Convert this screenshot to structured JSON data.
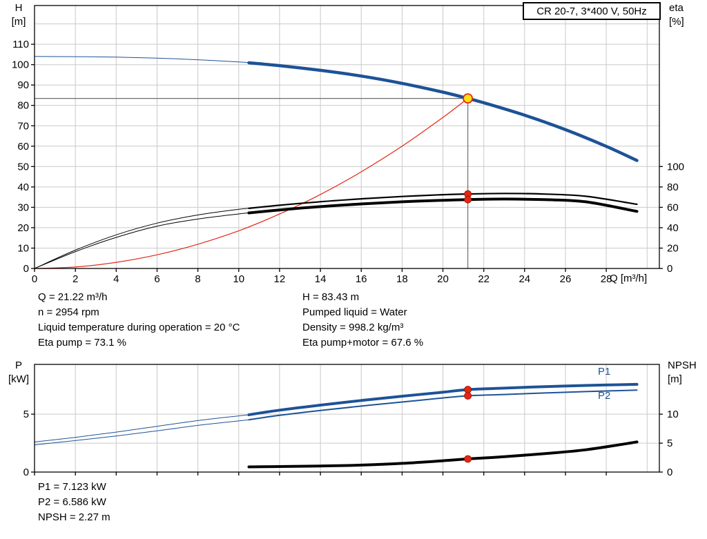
{
  "colors": {
    "blue": "#1d5296",
    "black": "#000000",
    "red": "#e42613",
    "marker_yellow": "#ffe014",
    "grid": "#c9c9c9",
    "crosshair": "#6e6e6e"
  },
  "chart_data": [
    {
      "name": "qh-eta-chart",
      "type": "line",
      "title": "CR 20-7, 3*400 V, 50Hz",
      "x_axis": {
        "label": "Q [m³/h]",
        "max": 30.6,
        "ticks": [
          0,
          2,
          4,
          6,
          8,
          10,
          12,
          14,
          16,
          18,
          20,
          22,
          24,
          26,
          28
        ],
        "grid": [
          2,
          4,
          6,
          8,
          10,
          12,
          14,
          16,
          18,
          20,
          22,
          24,
          26,
          28,
          30
        ],
        "show_labels": true
      },
      "y_left": {
        "label": [
          "H",
          "[m]"
        ],
        "max": 129,
        "ticks": [
          0,
          10,
          20,
          30,
          40,
          50,
          60,
          70,
          80,
          90,
          100,
          110
        ],
        "grid": [
          10,
          20,
          30,
          40,
          50,
          60,
          70,
          80,
          90,
          100,
          110,
          120
        ]
      },
      "y_right": {
        "label": [
          "eta",
          "[%]"
        ],
        "scale": 0.5,
        "ticks": [
          0,
          20,
          40,
          60,
          80,
          100
        ]
      },
      "crosshair": {
        "q": 21.22,
        "h": 83.43
      },
      "duty_point": {
        "q_m3h": 21.22,
        "h_m": 83.43,
        "eta_pump_pct": 73.1,
        "eta_pump_motor_pct": 67.6
      },
      "series": [
        {
          "name": "system-curve",
          "axis": "left",
          "color": "red",
          "width": 1.2,
          "points": [
            [
              0,
              0
            ],
            [
              2,
              0.7
            ],
            [
              4,
              3.0
            ],
            [
              6,
              6.7
            ],
            [
              8,
              11.9
            ],
            [
              10,
              18.5
            ],
            [
              12,
              26.7
            ],
            [
              14,
              36.3
            ],
            [
              16,
              47.4
            ],
            [
              18,
              60.0
            ],
            [
              20,
              74.1
            ],
            [
              21.22,
              83.43
            ]
          ]
        },
        {
          "name": "eta-pump-lowflow",
          "axis": "right",
          "color": "black",
          "width": 1,
          "points": [
            [
              0,
              0
            ],
            [
              2,
              18
            ],
            [
              4,
              33
            ],
            [
              6,
              44.5
            ],
            [
              8,
              52.5
            ],
            [
              10,
              58
            ],
            [
              10.5,
              59
            ]
          ]
        },
        {
          "name": "eta-pump",
          "axis": "right",
          "color": "black",
          "width": 2.2,
          "points": [
            [
              10.5,
              59
            ],
            [
              12,
              62
            ],
            [
              14,
              65.5
            ],
            [
              16,
              68.3
            ],
            [
              18,
              70.6
            ],
            [
              20,
              72.4
            ],
            [
              21.22,
              73.1
            ],
            [
              23,
              73.6
            ],
            [
              25,
              73.0
            ],
            [
              27,
              70.8
            ],
            [
              29.5,
              63
            ]
          ]
        },
        {
          "name": "eta-pump-motor-lowflow",
          "axis": "right",
          "color": "black",
          "width": 1,
          "points": [
            [
              0,
              0
            ],
            [
              2,
              16.5
            ],
            [
              4,
              30.5
            ],
            [
              6,
              41.5
            ],
            [
              8,
              48.5
            ],
            [
              10,
              53.5
            ],
            [
              10.5,
              54.5
            ]
          ]
        },
        {
          "name": "eta-pump-motor",
          "axis": "right",
          "color": "black",
          "width": 4,
          "points": [
            [
              10.5,
              54.5
            ],
            [
              12,
              57.4
            ],
            [
              14,
              60.7
            ],
            [
              16,
              63.3
            ],
            [
              18,
              65.4
            ],
            [
              20,
              66.9
            ],
            [
              21.22,
              67.6
            ],
            [
              23,
              68.1
            ],
            [
              25,
              67.5
            ],
            [
              27,
              65.4
            ],
            [
              29.5,
              56
            ]
          ]
        },
        {
          "name": "qh-lowflow",
          "axis": "left",
          "color": "blue",
          "width": 1,
          "points": [
            [
              0,
              104
            ],
            [
              2,
              103.9
            ],
            [
              4,
              103.7
            ],
            [
              6,
              103.2
            ],
            [
              8,
              102.4
            ],
            [
              10,
              101.3
            ],
            [
              10.5,
              100.9
            ]
          ]
        },
        {
          "name": "qh",
          "axis": "left",
          "color": "blue",
          "width": 4.5,
          "points": [
            [
              10.5,
              100.9
            ],
            [
              12,
              99.5
            ],
            [
              14,
              97.2
            ],
            [
              16,
              94.4
            ],
            [
              18,
              90.8
            ],
            [
              20,
              86.5
            ],
            [
              21.22,
              83.43
            ],
            [
              22,
              81.3
            ],
            [
              24,
              75.2
            ],
            [
              26,
              68.1
            ],
            [
              28,
              59.9
            ],
            [
              29.5,
              53.0
            ]
          ]
        }
      ],
      "markers": [
        {
          "q": 21.22,
          "v": 73.1,
          "axis": "right",
          "style": "red"
        },
        {
          "q": 21.22,
          "v": 67.6,
          "axis": "right",
          "style": "red"
        },
        {
          "q": 21.22,
          "v": 83.43,
          "axis": "left",
          "style": "duty"
        }
      ]
    },
    {
      "name": "power-npsh-chart",
      "type": "line",
      "x_axis": {
        "label": "",
        "max": 30.6,
        "ticks": [
          0,
          2,
          4,
          6,
          8,
          10,
          12,
          14,
          16,
          18,
          20,
          22,
          24,
          26,
          28
        ],
        "grid": [
          2,
          4,
          6,
          8,
          10,
          12,
          14,
          16,
          18,
          20,
          22,
          24,
          26,
          28,
          30
        ],
        "show_labels": false
      },
      "y_left": {
        "label": [
          "P",
          "[kW]"
        ],
        "max": 9.3,
        "ticks": [
          0,
          5
        ],
        "grid": [
          2.5,
          5
        ]
      },
      "y_right": {
        "label": [
          "NPSH",
          "[m]"
        ],
        "scale": 0.5,
        "ticks": [
          0,
          5,
          10
        ]
      },
      "curve_labels": {
        "p1": "P1",
        "p2": "P2"
      },
      "duty_point": {
        "q_m3h": 21.22,
        "p1_kw": 7.123,
        "p2_kw": 6.586,
        "npsh_m": 2.27
      },
      "series": [
        {
          "name": "p1-lowflow",
          "axis": "left",
          "color": "blue",
          "width": 1,
          "points": [
            [
              0,
              2.6
            ],
            [
              2,
              3.0
            ],
            [
              4,
              3.45
            ],
            [
              6,
              3.95
            ],
            [
              8,
              4.45
            ],
            [
              10,
              4.85
            ],
            [
              10.5,
              4.95
            ]
          ]
        },
        {
          "name": "p1",
          "axis": "left",
          "color": "blue",
          "width": 4,
          "points": [
            [
              10.5,
              4.95
            ],
            [
              12,
              5.35
            ],
            [
              14,
              5.78
            ],
            [
              16,
              6.18
            ],
            [
              18,
              6.55
            ],
            [
              20,
              6.9
            ],
            [
              21.22,
              7.123
            ],
            [
              23,
              7.25
            ],
            [
              25,
              7.38
            ],
            [
              27,
              7.48
            ],
            [
              29.5,
              7.58
            ]
          ]
        },
        {
          "name": "p2-lowflow",
          "axis": "left",
          "color": "blue",
          "width": 1,
          "points": [
            [
              0,
              2.35
            ],
            [
              2,
              2.72
            ],
            [
              4,
              3.12
            ],
            [
              6,
              3.56
            ],
            [
              8,
              4.03
            ],
            [
              10,
              4.42
            ],
            [
              10.5,
              4.52
            ]
          ]
        },
        {
          "name": "p2",
          "axis": "left",
          "color": "blue",
          "width": 2,
          "points": [
            [
              10.5,
              4.52
            ],
            [
              12,
              4.9
            ],
            [
              14,
              5.32
            ],
            [
              16,
              5.7
            ],
            [
              18,
              6.05
            ],
            [
              20,
              6.4
            ],
            [
              21.22,
              6.586
            ],
            [
              23,
              6.7
            ],
            [
              25,
              6.83
            ],
            [
              27,
              6.95
            ],
            [
              29.5,
              7.08
            ]
          ]
        },
        {
          "name": "npsh",
          "axis": "right",
          "color": "black",
          "width": 4,
          "points": [
            [
              10.5,
              0.9
            ],
            [
              12,
              0.95
            ],
            [
              14,
              1.05
            ],
            [
              16,
              1.2
            ],
            [
              18,
              1.5
            ],
            [
              20,
              1.95
            ],
            [
              21.22,
              2.27
            ],
            [
              23,
              2.65
            ],
            [
              25,
              3.2
            ],
            [
              27,
              3.85
            ],
            [
              29.5,
              5.2
            ]
          ]
        }
      ],
      "markers": [
        {
          "q": 21.22,
          "v": 7.123,
          "axis": "left",
          "style": "red"
        },
        {
          "q": 21.22,
          "v": 6.586,
          "axis": "left",
          "style": "red"
        },
        {
          "q": 21.22,
          "v": 2.27,
          "axis": "right",
          "style": "red"
        }
      ]
    }
  ],
  "info_top_left": [
    "Q = 21.22 m³/h",
    "n = 2954 rpm",
    "Liquid temperature during operation = 20 °C",
    "Eta pump = 73.1 %"
  ],
  "info_top_right": [
    "H = 83.43 m",
    "Pumped liquid = Water",
    "Density = 998.2 kg/m³",
    "Eta pump+motor = 67.6 %"
  ],
  "info_bottom": [
    "P1 = 7.123 kW",
    "P2 = 6.586 kW",
    "NPSH = 2.27 m"
  ]
}
